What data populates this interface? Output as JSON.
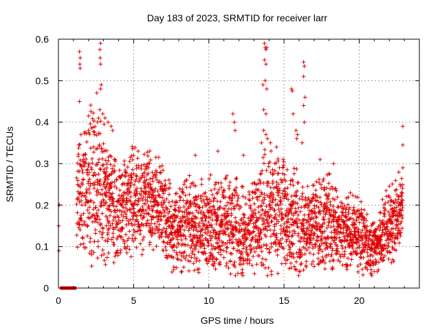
{
  "chart_data": {
    "type": "scatter",
    "title": "Day 183 of 2023, SRMTID for receiver larr",
    "xlabel": "GPS time / hours",
    "ylabel": "SRMTID / TECUs",
    "xlim": [
      0,
      24
    ],
    "ylim": [
      0,
      0.6
    ],
    "xticks": [
      0,
      5,
      10,
      15,
      20
    ],
    "xtick_labels": [
      "0",
      "5",
      "10",
      "15",
      "20"
    ],
    "yticks": [
      0,
      0.1,
      0.2,
      0.3,
      0.4,
      0.5,
      0.6
    ],
    "ytick_labels": [
      "0",
      "0.1",
      "0.2",
      "0.3",
      "0.4",
      "0.5",
      "0.6"
    ],
    "grid": true,
    "marker": "+",
    "series_color": "#dd0000",
    "gap_segment": {
      "x_start": 0.1,
      "x_end": 1.2,
      "y": 0
    },
    "envelope": [
      {
        "t": 0.0,
        "lo": 0.07,
        "hi": 0.2
      },
      {
        "t": 1.0,
        "lo": 0.08,
        "hi": 0.3
      },
      {
        "t": 1.5,
        "lo": 0.12,
        "hi": 0.32
      },
      {
        "t": 2.0,
        "lo": 0.1,
        "hi": 0.36
      },
      {
        "t": 2.5,
        "lo": 0.12,
        "hi": 0.4
      },
      {
        "t": 3.0,
        "lo": 0.12,
        "hi": 0.36
      },
      {
        "t": 3.5,
        "lo": 0.11,
        "hi": 0.3
      },
      {
        "t": 4.0,
        "lo": 0.09,
        "hi": 0.26
      },
      {
        "t": 5.0,
        "lo": 0.11,
        "hi": 0.3
      },
      {
        "t": 6.0,
        "lo": 0.13,
        "hi": 0.3
      },
      {
        "t": 6.8,
        "lo": 0.12,
        "hi": 0.29
      },
      {
        "t": 7.5,
        "lo": 0.06,
        "hi": 0.22
      },
      {
        "t": 8.5,
        "lo": 0.07,
        "hi": 0.24
      },
      {
        "t": 9.5,
        "lo": 0.06,
        "hi": 0.22
      },
      {
        "t": 10.5,
        "lo": 0.08,
        "hi": 0.24
      },
      {
        "t": 11.5,
        "lo": 0.06,
        "hi": 0.24
      },
      {
        "t": 12.5,
        "lo": 0.05,
        "hi": 0.2
      },
      {
        "t": 13.3,
        "lo": 0.07,
        "hi": 0.26
      },
      {
        "t": 14.0,
        "lo": 0.09,
        "hi": 0.3
      },
      {
        "t": 15.0,
        "lo": 0.08,
        "hi": 0.27
      },
      {
        "t": 16.0,
        "lo": 0.07,
        "hi": 0.24
      },
      {
        "t": 17.0,
        "lo": 0.08,
        "hi": 0.22
      },
      {
        "t": 18.0,
        "lo": 0.08,
        "hi": 0.25
      },
      {
        "t": 19.0,
        "lo": 0.07,
        "hi": 0.2
      },
      {
        "t": 20.0,
        "lo": 0.07,
        "hi": 0.2
      },
      {
        "t": 20.8,
        "lo": 0.04,
        "hi": 0.14
      },
      {
        "t": 21.5,
        "lo": 0.08,
        "hi": 0.18
      },
      {
        "t": 22.0,
        "lo": 0.09,
        "hi": 0.22
      },
      {
        "t": 22.8,
        "lo": 0.12,
        "hi": 0.25
      }
    ],
    "spikes": [
      {
        "x": 0.05,
        "y": 0.2
      },
      {
        "x": 0.02,
        "y": 0.15
      },
      {
        "x": 0.03,
        "y": 0.09
      },
      {
        "x": 1.4,
        "y": 0.57
      },
      {
        "x": 1.45,
        "y": 0.555
      },
      {
        "x": 1.42,
        "y": 0.54
      },
      {
        "x": 1.44,
        "y": 0.53
      },
      {
        "x": 1.4,
        "y": 0.45
      },
      {
        "x": 1.5,
        "y": 0.37
      },
      {
        "x": 2.8,
        "y": 0.59
      },
      {
        "x": 2.75,
        "y": 0.575
      },
      {
        "x": 2.78,
        "y": 0.555
      },
      {
        "x": 2.8,
        "y": 0.54
      },
      {
        "x": 2.85,
        "y": 0.49
      },
      {
        "x": 2.8,
        "y": 0.48
      },
      {
        "x": 2.75,
        "y": 0.43
      },
      {
        "x": 2.95,
        "y": 0.42
      },
      {
        "x": 3.1,
        "y": 0.41
      },
      {
        "x": 3.3,
        "y": 0.4
      },
      {
        "x": 3.5,
        "y": 0.39
      },
      {
        "x": 3.6,
        "y": 0.38
      },
      {
        "x": 2.6,
        "y": 0.4
      },
      {
        "x": 2.0,
        "y": 0.38
      },
      {
        "x": 11.6,
        "y": 0.42
      },
      {
        "x": 11.7,
        "y": 0.4
      },
      {
        "x": 11.75,
        "y": 0.38
      },
      {
        "x": 13.5,
        "y": 0.35
      },
      {
        "x": 13.7,
        "y": 0.59
      },
      {
        "x": 13.75,
        "y": 0.58
      },
      {
        "x": 13.8,
        "y": 0.575
      },
      {
        "x": 13.85,
        "y": 0.58
      },
      {
        "x": 13.7,
        "y": 0.55
      },
      {
        "x": 13.8,
        "y": 0.54
      },
      {
        "x": 13.75,
        "y": 0.5
      },
      {
        "x": 13.6,
        "y": 0.49
      },
      {
        "x": 13.85,
        "y": 0.48
      },
      {
        "x": 13.65,
        "y": 0.43
      },
      {
        "x": 13.8,
        "y": 0.42
      },
      {
        "x": 13.65,
        "y": 0.38
      },
      {
        "x": 13.8,
        "y": 0.37
      },
      {
        "x": 13.9,
        "y": 0.36
      },
      {
        "x": 14.1,
        "y": 0.35
      },
      {
        "x": 15.5,
        "y": 0.48
      },
      {
        "x": 15.55,
        "y": 0.475
      },
      {
        "x": 15.6,
        "y": 0.42
      },
      {
        "x": 15.8,
        "y": 0.38
      },
      {
        "x": 15.9,
        "y": 0.37
      },
      {
        "x": 15.85,
        "y": 0.36
      },
      {
        "x": 16.3,
        "y": 0.545
      },
      {
        "x": 16.35,
        "y": 0.535
      },
      {
        "x": 16.3,
        "y": 0.51
      },
      {
        "x": 16.4,
        "y": 0.46
      },
      {
        "x": 16.3,
        "y": 0.44
      },
      {
        "x": 16.35,
        "y": 0.4
      },
      {
        "x": 16.2,
        "y": 0.35
      },
      {
        "x": 22.9,
        "y": 0.39
      },
      {
        "x": 22.9,
        "y": 0.345
      },
      {
        "x": 22.9,
        "y": 0.29
      },
      {
        "x": 5.3,
        "y": 0.33
      },
      {
        "x": 9.1,
        "y": 0.32
      },
      {
        "x": 10.6,
        "y": 0.33
      },
      {
        "x": 12.3,
        "y": 0.32
      },
      {
        "x": 14.5,
        "y": 0.34
      },
      {
        "x": 17.4,
        "y": 0.31
      },
      {
        "x": 18.3,
        "y": 0.3
      },
      {
        "x": 8.2,
        "y": 0.04
      },
      {
        "x": 20.8,
        "y": 0.035
      },
      {
        "x": 11.2,
        "y": 0.06
      },
      {
        "x": 21.0,
        "y": 0.04
      }
    ]
  }
}
